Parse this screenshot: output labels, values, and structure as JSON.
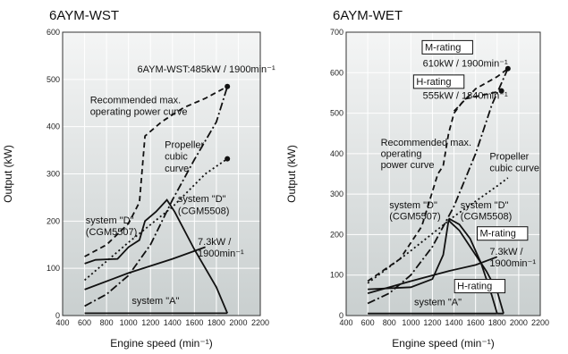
{
  "chart_data": [
    {
      "type": "line",
      "title": "6AYM-WST",
      "xlabel": "Engine speed (min⁻¹)",
      "ylabel": "Output (kW)",
      "xlim": [
        400,
        2200
      ],
      "ylim": [
        0,
        600
      ],
      "xticks": [
        400,
        600,
        800,
        1000,
        1200,
        1400,
        1600,
        1800,
        2000,
        2200
      ],
      "yticks": [
        0,
        100,
        200,
        300,
        400,
        500,
        600
      ],
      "x_tick_labels": [
        "400",
        "600",
        "800",
        "1000",
        "1200",
        "1400",
        "1600",
        "1800",
        "2000",
        "2200"
      ],
      "y_tick_labels": [
        "0",
        "100",
        "200",
        "300",
        "400",
        "500",
        "600"
      ],
      "series": [
        {
          "style": "dashed",
          "points": [
            [
              600,
              125
            ],
            [
              800,
              150
            ],
            [
              1000,
              195
            ],
            [
              1100,
              240
            ],
            [
              1150,
              380
            ],
            [
              1300,
              410
            ],
            [
              1500,
              440
            ],
            [
              1700,
              460
            ],
            [
              1900,
              485
            ]
          ]
        },
        {
          "style": "dashdot",
          "points": [
            [
              600,
              20
            ],
            [
              800,
              45
            ],
            [
              1000,
              85
            ],
            [
              1200,
              150
            ],
            [
              1400,
              245
            ],
            [
              1600,
              330
            ],
            [
              1800,
              410
            ],
            [
              1900,
              485
            ]
          ]
        },
        {
          "style": "dotted",
          "points": [
            [
              600,
              75
            ],
            [
              1000,
              155
            ],
            [
              1400,
              230
            ],
            [
              1700,
              300
            ],
            [
              1900,
              332
            ]
          ]
        },
        {
          "style": "solid",
          "points": [
            [
              600,
              110
            ],
            [
              700,
              118
            ],
            [
              900,
              120
            ],
            [
              1000,
              145
            ],
            [
              1100,
              160
            ],
            [
              1150,
              200
            ],
            [
              1250,
              220
            ],
            [
              1350,
              245
            ],
            [
              1420,
              220
            ],
            [
              1600,
              140
            ],
            [
              1800,
              60
            ],
            [
              1900,
              5
            ]
          ]
        },
        {
          "style": "solid",
          "points": [
            [
              600,
              55
            ],
            [
              1000,
              90
            ],
            [
              1400,
              120
            ],
            [
              1700,
              145
            ]
          ]
        },
        {
          "style": "solid",
          "points": [
            [
              600,
              5
            ],
            [
              1900,
              5
            ]
          ]
        }
      ],
      "markers": [
        [
          1900,
          485
        ],
        [
          1900,
          332
        ]
      ],
      "annotations": [
        {
          "text": "6AYM-WST:485kW / 1900min⁻¹",
          "x": 1080,
          "y": 515
        },
        {
          "text": "Recommended max.",
          "x": 650,
          "y": 450
        },
        {
          "text": "operating power curve",
          "x": 650,
          "y": 425
        },
        {
          "text": "Propeller",
          "x": 1330,
          "y": 355
        },
        {
          "text": "cubic",
          "x": 1330,
          "y": 330
        },
        {
          "text": "curve",
          "x": 1330,
          "y": 305
        },
        {
          "text": "system \"D\"",
          "x": 1450,
          "y": 240
        },
        {
          "text": "(CGM5508)",
          "x": 1450,
          "y": 215
        },
        {
          "text": "system \"D\"",
          "x": 610,
          "y": 195
        },
        {
          "text": "(CGM5507)",
          "x": 610,
          "y": 170
        },
        {
          "text": "7.3kW /",
          "x": 1630,
          "y": 150
        },
        {
          "text": "1900min⁻¹",
          "x": 1630,
          "y": 125
        },
        {
          "text": "system \"A\"",
          "x": 1030,
          "y": 25
        }
      ]
    },
    {
      "type": "line",
      "title": "6AYM-WET",
      "xlabel": "Engine speed (min⁻¹)",
      "ylabel": "Output (kW)",
      "xlim": [
        400,
        2200
      ],
      "ylim": [
        0,
        700
      ],
      "xticks": [
        400,
        600,
        800,
        1000,
        1200,
        1400,
        1600,
        1800,
        2000,
        2200
      ],
      "yticks": [
        0,
        100,
        200,
        300,
        400,
        500,
        600,
        700
      ],
      "x_tick_labels": [
        "400",
        "600",
        "800",
        "1000",
        "1200",
        "1400",
        "1600",
        "1800",
        "2000",
        "2200"
      ],
      "y_tick_labels": [
        "0",
        "100",
        "200",
        "300",
        "400",
        "500",
        "600",
        "700"
      ],
      "series": [
        {
          "style": "dashed",
          "points": [
            [
              600,
              85
            ],
            [
              900,
              140
            ],
            [
              1100,
              220
            ],
            [
              1250,
              350
            ],
            [
              1300,
              370
            ],
            [
              1350,
              450
            ],
            [
              1400,
              500
            ],
            [
              1500,
              535
            ],
            [
              1840,
              555
            ]
          ]
        },
        {
          "style": "dashed",
          "points": [
            [
              1400,
              505
            ],
            [
              1600,
              560
            ],
            [
              1800,
              590
            ],
            [
              1900,
              610
            ]
          ]
        },
        {
          "style": "dashdot",
          "points": [
            [
              600,
              30
            ],
            [
              800,
              55
            ],
            [
              1000,
              100
            ],
            [
              1200,
              170
            ],
            [
              1400,
              270
            ],
            [
              1600,
              400
            ],
            [
              1750,
              520
            ],
            [
              1900,
              610
            ]
          ]
        },
        {
          "style": "dotted",
          "points": [
            [
              600,
              80
            ],
            [
              1000,
              160
            ],
            [
              1400,
              245
            ],
            [
              1800,
              320
            ],
            [
              1900,
              340
            ]
          ]
        },
        {
          "style": "solid",
          "points": [
            [
              600,
              65
            ],
            [
              1000,
              70
            ],
            [
              1200,
              90
            ],
            [
              1300,
              150
            ],
            [
              1350,
              235
            ],
            [
              1450,
              210
            ],
            [
              1550,
              170
            ],
            [
              1700,
              110
            ],
            [
              1800,
              60
            ],
            [
              1860,
              5
            ]
          ]
        },
        {
          "style": "solid",
          "points": [
            [
              1350,
              240
            ],
            [
              1450,
              225
            ],
            [
              1550,
              190
            ],
            [
              1650,
              130
            ],
            [
              1750,
              50
            ],
            [
              1800,
              5
            ]
          ]
        },
        {
          "style": "solid",
          "points": [
            [
              600,
              55
            ],
            [
              1000,
              85
            ],
            [
              1350,
              110
            ],
            [
              1600,
              125
            ],
            [
              1800,
              145
            ]
          ]
        },
        {
          "style": "solid",
          "points": [
            [
              600,
              5
            ],
            [
              1860,
              5
            ]
          ]
        }
      ],
      "markers": [
        [
          1900,
          610
        ],
        [
          1840,
          555
        ]
      ],
      "annotations": [
        {
          "text": "610kW / 1900min⁻¹",
          "x": 1110,
          "y": 615
        },
        {
          "text": "555kW / 1840min⁻¹",
          "x": 1110,
          "y": 535
        },
        {
          "text": "Recommended max.",
          "x": 720,
          "y": 420
        },
        {
          "text": "operating",
          "x": 720,
          "y": 392
        },
        {
          "text": "power curve",
          "x": 720,
          "y": 364
        },
        {
          "text": "Propeller",
          "x": 1730,
          "y": 385
        },
        {
          "text": "cubic curve",
          "x": 1730,
          "y": 357
        },
        {
          "text": "system \"D\"",
          "x": 800,
          "y": 265
        },
        {
          "text": "(CGM5507)",
          "x": 800,
          "y": 237
        },
        {
          "text": "system \"D\"",
          "x": 1460,
          "y": 265
        },
        {
          "text": "(CGM5508)",
          "x": 1460,
          "y": 237
        },
        {
          "text": "7.3kW /",
          "x": 1730,
          "y": 150
        },
        {
          "text": "1900min⁻¹",
          "x": 1730,
          "y": 122
        },
        {
          "text": "system \"A\"",
          "x": 1030,
          "y": 25
        }
      ],
      "boxed_labels": [
        {
          "text": "M-rating",
          "x": 1130,
          "y": 655
        },
        {
          "text": "H-rating",
          "x": 1050,
          "y": 570
        },
        {
          "text": "M-rating",
          "x": 1640,
          "y": 195
        },
        {
          "text": "H-rating",
          "x": 1430,
          "y": 65
        }
      ]
    }
  ]
}
